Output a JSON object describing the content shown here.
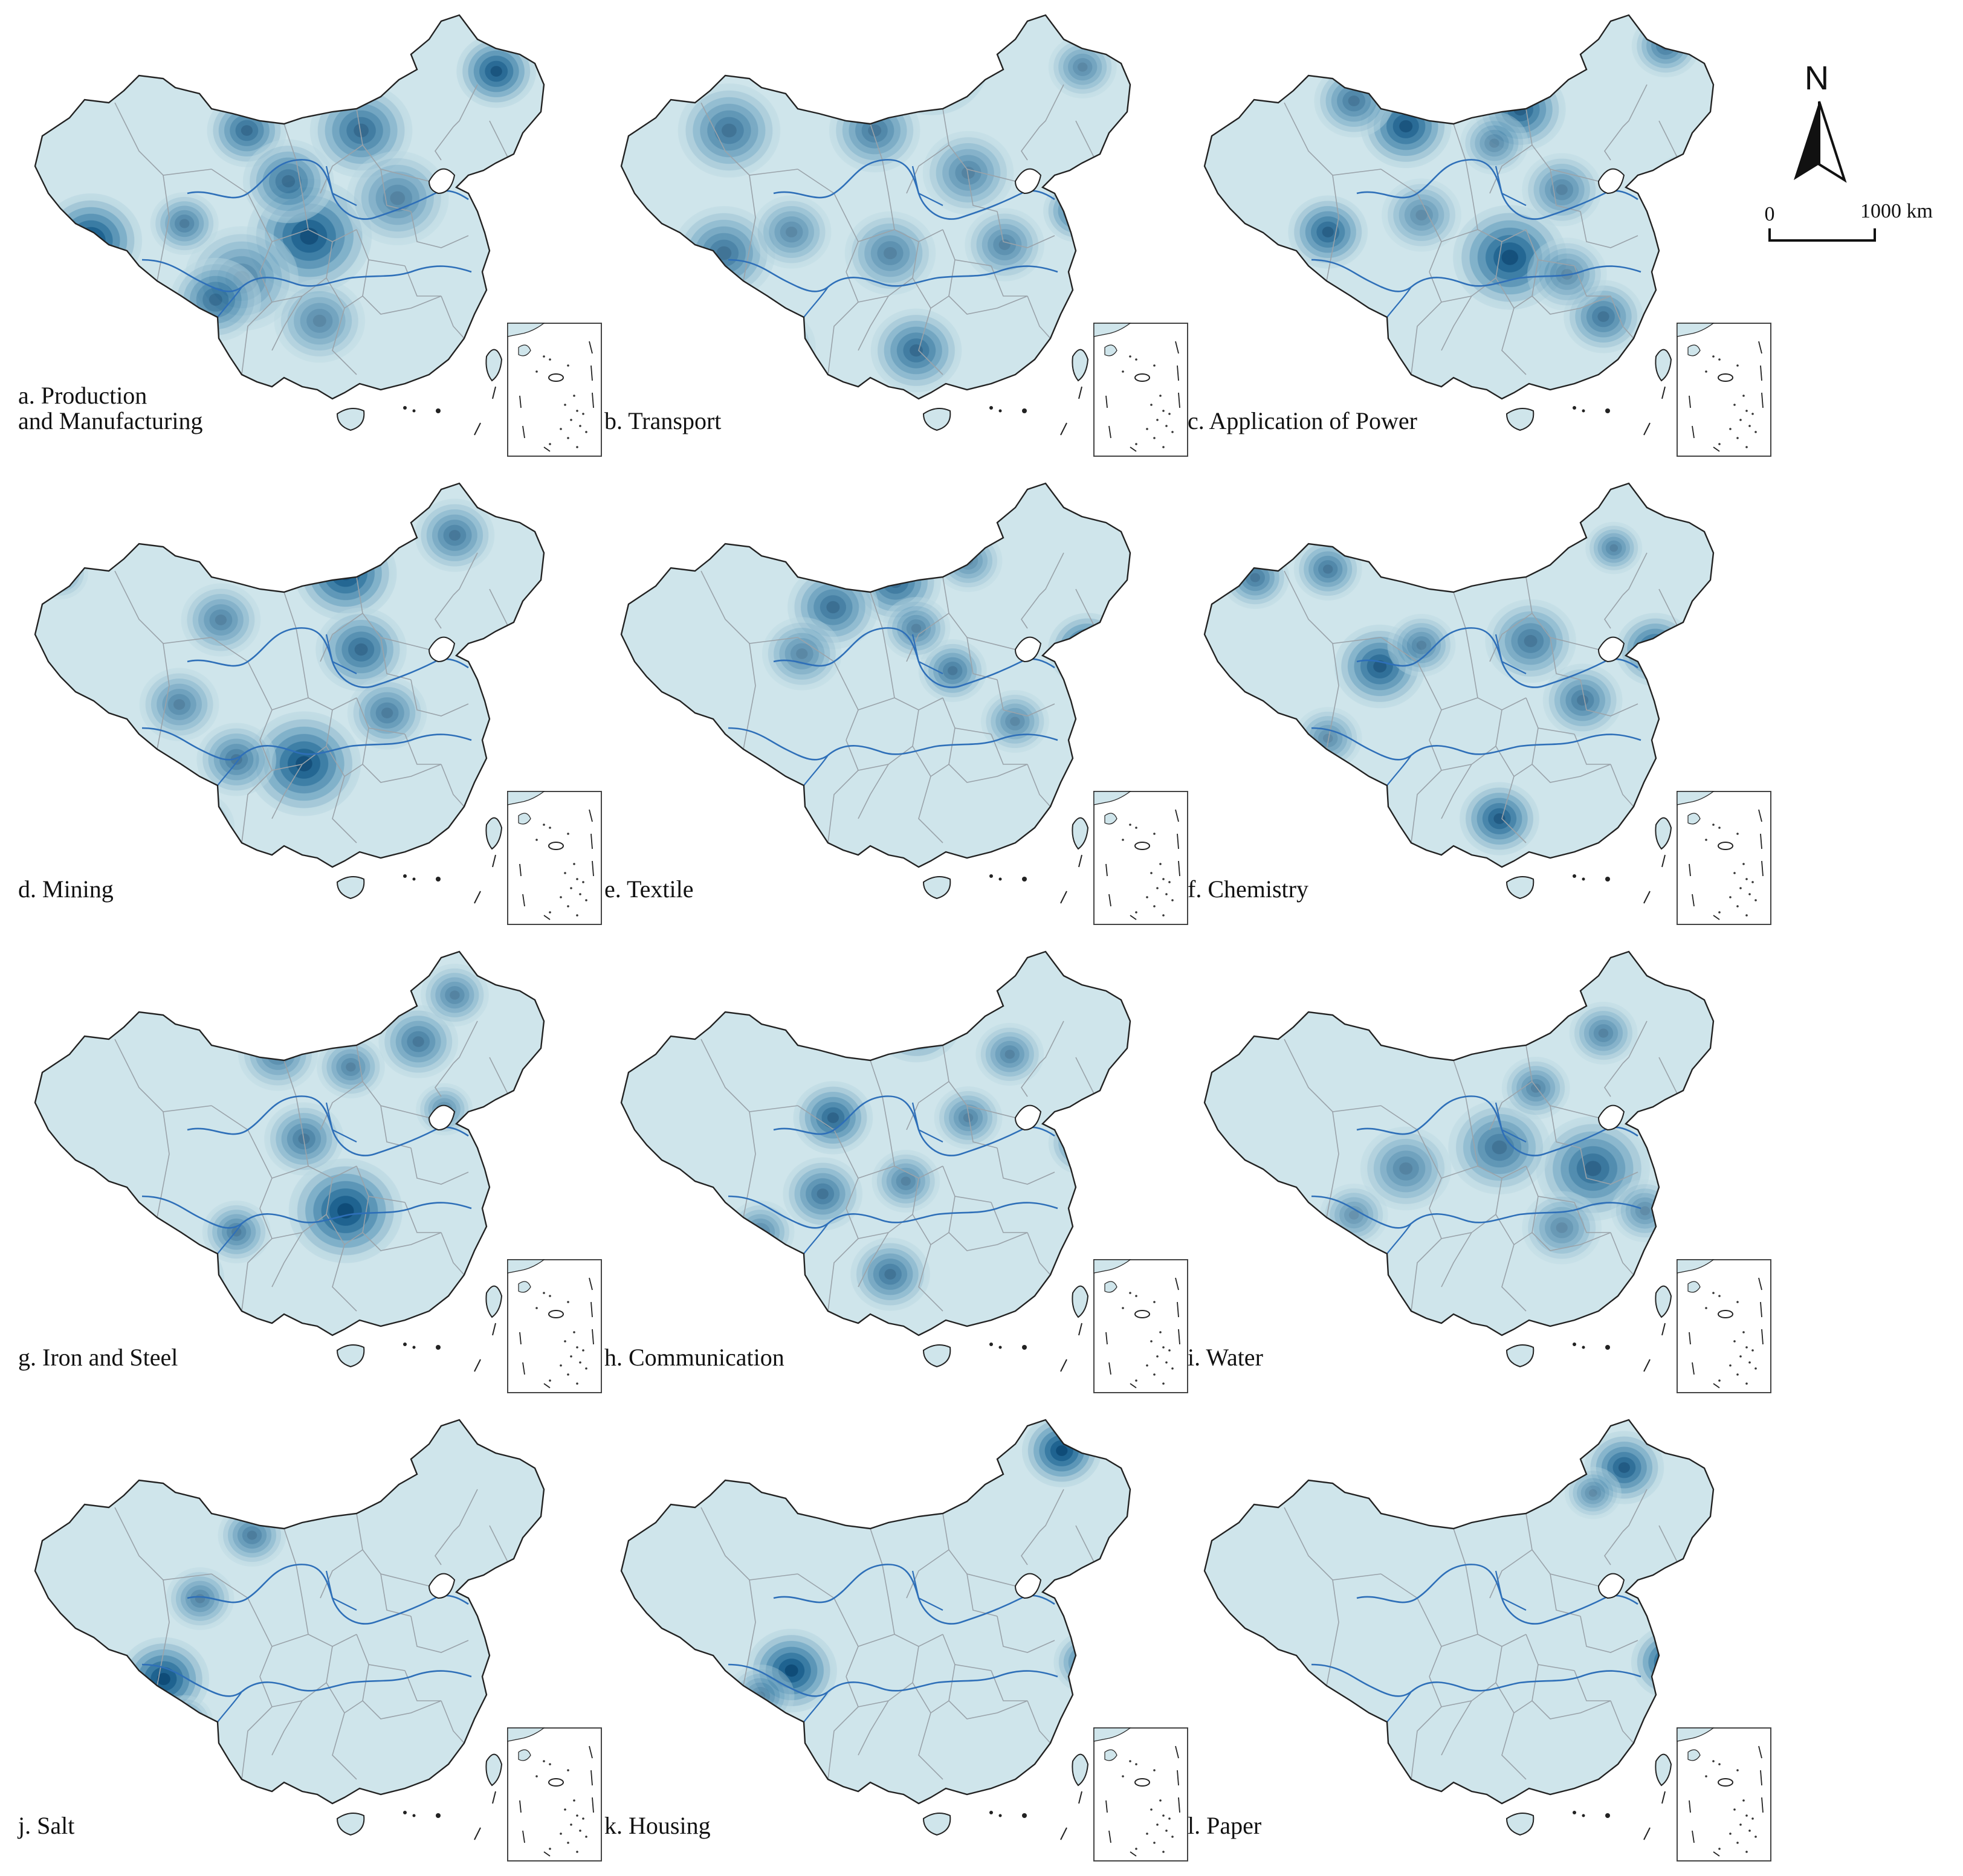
{
  "figure": {
    "panels": [
      {
        "id": "a",
        "label_lines": [
          "a. Production",
          "and Manufacturing"
        ],
        "hotspots": [
          [
            0.56,
            0.53,
            0.11,
            0.95
          ],
          [
            0.92,
            0.14,
            0.07,
            0.9
          ],
          [
            0.44,
            0.28,
            0.07,
            0.7
          ],
          [
            0.66,
            0.28,
            0.09,
            0.7
          ],
          [
            0.43,
            0.63,
            0.1,
            0.45
          ],
          [
            0.52,
            0.4,
            0.08,
            0.65
          ],
          [
            0.14,
            0.54,
            0.09,
            1.0
          ],
          [
            0.16,
            0.69,
            0.08,
            0.8
          ],
          [
            0.32,
            0.5,
            0.06,
            0.5
          ],
          [
            0.38,
            0.68,
            0.08,
            0.55
          ],
          [
            0.58,
            0.73,
            0.08,
            0.4
          ],
          [
            0.73,
            0.44,
            0.09,
            0.45
          ],
          [
            0.08,
            0.88,
            0.08,
            0.25
          ],
          [
            0.28,
            0.82,
            0.06,
            0.3
          ]
        ]
      },
      {
        "id": "b",
        "label_lines": [
          "b. Transport"
        ],
        "hotspots": [
          [
            0.63,
            0.12,
            0.1,
            1.0
          ],
          [
            0.52,
            0.28,
            0.08,
            0.55
          ],
          [
            0.7,
            0.38,
            0.08,
            0.45
          ],
          [
            0.91,
            0.47,
            0.06,
            0.7
          ],
          [
            0.55,
            0.57,
            0.08,
            0.45
          ],
          [
            0.6,
            0.8,
            0.08,
            0.7
          ],
          [
            0.24,
            0.28,
            0.09,
            0.6
          ],
          [
            0.23,
            0.57,
            0.09,
            0.6
          ],
          [
            0.36,
            0.52,
            0.07,
            0.4
          ],
          [
            0.92,
            0.13,
            0.06,
            0.4
          ],
          [
            0.02,
            0.56,
            0.05,
            0.25
          ],
          [
            0.33,
            0.79,
            0.07,
            0.35
          ],
          [
            0.77,
            0.55,
            0.07,
            0.45
          ]
        ]
      },
      {
        "id": "c",
        "label_lines": [
          "c. Application of Power"
        ],
        "hotspots": [
          [
            0.62,
            0.58,
            0.1,
            0.95
          ],
          [
            0.42,
            0.27,
            0.08,
            0.9
          ],
          [
            0.32,
            0.21,
            0.07,
            0.55
          ],
          [
            0.64,
            0.23,
            0.08,
            0.8
          ],
          [
            0.96,
            0.41,
            0.06,
            0.75
          ],
          [
            0.8,
            0.72,
            0.07,
            0.6
          ],
          [
            0.72,
            0.42,
            0.07,
            0.45
          ],
          [
            0.27,
            0.52,
            0.07,
            0.8
          ],
          [
            0.59,
            0.31,
            0.06,
            0.35
          ],
          [
            0.92,
            0.08,
            0.06,
            0.55
          ],
          [
            0.73,
            0.62,
            0.07,
            0.35
          ],
          [
            0.45,
            0.48,
            0.07,
            0.35
          ]
        ]
      },
      {
        "id": "d",
        "label_lines": [
          "d. Mining"
        ],
        "hotspots": [
          [
            0.63,
            0.22,
            0.09,
            0.95
          ],
          [
            0.66,
            0.4,
            0.08,
            0.7
          ],
          [
            0.84,
            0.13,
            0.07,
            0.55
          ],
          [
            0.55,
            0.67,
            0.1,
            0.95
          ],
          [
            0.25,
            0.73,
            0.07,
            0.85
          ],
          [
            0.42,
            0.66,
            0.07,
            0.55
          ],
          [
            0.31,
            0.53,
            0.07,
            0.45
          ],
          [
            0.39,
            0.33,
            0.07,
            0.45
          ],
          [
            0.08,
            0.22,
            0.05,
            0.3
          ],
          [
            0.07,
            0.7,
            0.05,
            0.4
          ],
          [
            0.34,
            0.82,
            0.07,
            0.4
          ],
          [
            0.71,
            0.55,
            0.07,
            0.5
          ]
        ]
      },
      {
        "id": "e",
        "label_lines": [
          "e. Textile"
        ],
        "hotspots": [
          [
            0.93,
            0.4,
            0.07,
            1.0
          ],
          [
            0.56,
            0.24,
            0.08,
            0.7
          ],
          [
            0.44,
            0.3,
            0.08,
            0.65
          ],
          [
            0.67,
            0.45,
            0.06,
            0.55
          ],
          [
            0.6,
            0.35,
            0.06,
            0.45
          ],
          [
            0.38,
            0.41,
            0.07,
            0.4
          ],
          [
            0.7,
            0.19,
            0.06,
            0.35
          ],
          [
            0.79,
            0.57,
            0.06,
            0.4
          ]
        ]
      },
      {
        "id": "f",
        "label_lines": [
          "f. Chemistry"
        ],
        "hotspots": [
          [
            0.63,
            0.11,
            0.08,
            1.0
          ],
          [
            0.66,
            0.38,
            0.08,
            0.55
          ],
          [
            0.9,
            0.4,
            0.07,
            0.85
          ],
          [
            0.37,
            0.44,
            0.08,
            0.85
          ],
          [
            0.6,
            0.8,
            0.07,
            0.85
          ],
          [
            0.76,
            0.52,
            0.07,
            0.55
          ],
          [
            0.13,
            0.23,
            0.06,
            0.55
          ],
          [
            0.27,
            0.21,
            0.06,
            0.55
          ],
          [
            0.45,
            0.39,
            0.06,
            0.45
          ],
          [
            0.82,
            0.16,
            0.05,
            0.45
          ],
          [
            0.27,
            0.61,
            0.06,
            0.35
          ]
        ]
      },
      {
        "id": "g",
        "label_lines": [
          "g. Iron and Steel"
        ],
        "hotspots": [
          [
            0.63,
            0.62,
            0.1,
            1.0
          ],
          [
            0.55,
            0.45,
            0.07,
            0.55
          ],
          [
            0.32,
            0.78,
            0.07,
            0.85
          ],
          [
            0.42,
            0.67,
            0.06,
            0.5
          ],
          [
            0.77,
            0.22,
            0.07,
            0.55
          ],
          [
            0.84,
            0.11,
            0.06,
            0.45
          ],
          [
            0.5,
            0.25,
            0.07,
            0.45
          ],
          [
            0.64,
            0.28,
            0.06,
            0.45
          ],
          [
            0.37,
            0.88,
            0.06,
            0.4
          ],
          [
            0.82,
            0.38,
            0.05,
            0.35
          ]
        ]
      },
      {
        "id": "h",
        "label_lines": [
          "h. Communication"
        ],
        "hotspots": [
          [
            0.6,
            0.17,
            0.08,
            1.0
          ],
          [
            0.44,
            0.4,
            0.07,
            0.75
          ],
          [
            0.42,
            0.58,
            0.07,
            0.6
          ],
          [
            0.58,
            0.55,
            0.06,
            0.45
          ],
          [
            0.7,
            0.4,
            0.06,
            0.45
          ],
          [
            0.92,
            0.46,
            0.06,
            0.65
          ],
          [
            0.55,
            0.77,
            0.07,
            0.6
          ],
          [
            0.78,
            0.25,
            0.06,
            0.45
          ],
          [
            0.3,
            0.67,
            0.06,
            0.4
          ]
        ]
      },
      {
        "id": "i",
        "label_lines": [
          "i. Water"
        ],
        "hotspots": [
          [
            0.95,
            0.44,
            0.07,
            1.0
          ],
          [
            0.78,
            0.52,
            0.1,
            0.75
          ],
          [
            0.6,
            0.47,
            0.09,
            0.6
          ],
          [
            0.42,
            0.52,
            0.08,
            0.45
          ],
          [
            0.67,
            0.33,
            0.06,
            0.45
          ],
          [
            0.8,
            0.2,
            0.06,
            0.45
          ],
          [
            0.32,
            0.63,
            0.06,
            0.3
          ],
          [
            0.72,
            0.66,
            0.07,
            0.35
          ],
          [
            0.88,
            0.62,
            0.06,
            0.35
          ]
        ]
      },
      {
        "id": "j",
        "label_lines": [
          "j. Salt"
        ],
        "hotspots": [
          [
            0.28,
            0.62,
            0.08,
            1.0
          ],
          [
            0.35,
            0.43,
            0.06,
            0.45
          ],
          [
            0.45,
            0.28,
            0.06,
            0.5
          ],
          [
            0.32,
            0.72,
            0.05,
            0.35
          ]
        ]
      },
      {
        "id": "k",
        "label_lines": [
          "k. Housing"
        ],
        "hotspots": [
          [
            0.36,
            0.6,
            0.08,
            1.0
          ],
          [
            0.88,
            0.08,
            0.07,
            1.0
          ],
          [
            0.93,
            0.58,
            0.06,
            0.7
          ],
          [
            0.3,
            0.66,
            0.06,
            0.3
          ]
        ]
      },
      {
        "id": "l",
        "label_lines": [
          "l. Paper"
        ],
        "hotspots": [
          [
            0.93,
            0.58,
            0.07,
            1.0
          ],
          [
            0.84,
            0.12,
            0.07,
            0.85
          ],
          [
            0.78,
            0.18,
            0.05,
            0.35
          ]
        ]
      }
    ]
  },
  "north_arrow": {
    "label": "N"
  },
  "scale_bar": {
    "start_label": "0",
    "end_label": "1000 km"
  },
  "colors": {
    "base_fill": "#cfe5eb",
    "density_ramp": [
      "#b9d7e1",
      "#9fc4d5",
      "#7fb0c9",
      "#5c96b7",
      "#3a7ca4",
      "#1f6390",
      "#0f4c78"
    ],
    "river": "#2e6fb8",
    "boundary": "#9aa3aa",
    "coastline": "#222222",
    "inset_frame": "#444444"
  }
}
